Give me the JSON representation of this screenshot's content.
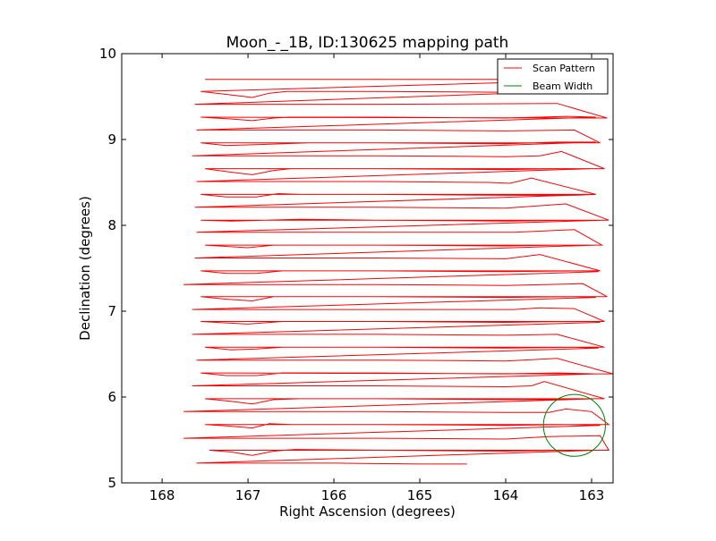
{
  "chart_data": {
    "type": "line",
    "title": "Moon_-_1B, ID:130625 mapping path",
    "xlabel": "Right Ascension (degrees)",
    "ylabel": "Declination (degrees)",
    "xlim": [
      168.47,
      162.75
    ],
    "ylim": [
      5,
      10
    ],
    "x_inverted": true,
    "xticks": [
      168,
      167,
      166,
      165,
      164,
      163
    ],
    "yticks": [
      5,
      6,
      7,
      8,
      9,
      10
    ],
    "xtick_labels": [
      "168",
      "167",
      "166",
      "165",
      "164",
      "163"
    ],
    "ytick_labels": [
      "5",
      "6",
      "7",
      "8",
      "9",
      "10"
    ],
    "grid": false,
    "legend": {
      "placement": "top-right",
      "entries": [
        {
          "label": "Scan Pattern",
          "color": "#ff0000"
        },
        {
          "label": "Beam Width",
          "color": "#008000"
        }
      ]
    },
    "series": [
      {
        "name": "Scan Pattern",
        "color": "#ff0000",
        "points": [
          [
            167.5,
            9.7
          ],
          [
            165.6,
            9.7
          ],
          [
            164.0,
            9.7
          ],
          [
            163.4,
            9.68
          ],
          [
            167.55,
            9.56
          ],
          [
            167.2,
            9.52
          ],
          [
            166.95,
            9.49
          ],
          [
            166.75,
            9.54
          ],
          [
            166.55,
            9.56
          ],
          [
            165.5,
            9.56
          ],
          [
            163.9,
            9.55
          ],
          [
            163.3,
            9.56
          ],
          [
            167.62,
            9.41
          ],
          [
            165.5,
            9.41
          ],
          [
            163.4,
            9.42
          ],
          [
            162.82,
            9.25
          ],
          [
            167.55,
            9.26
          ],
          [
            167.2,
            9.24
          ],
          [
            166.95,
            9.22
          ],
          [
            166.7,
            9.25
          ],
          [
            166.5,
            9.26
          ],
          [
            165.5,
            9.26
          ],
          [
            164.0,
            9.25
          ],
          [
            163.6,
            9.26
          ],
          [
            163.3,
            9.27
          ],
          [
            162.95,
            9.26
          ],
          [
            167.6,
            9.11
          ],
          [
            165.5,
            9.11
          ],
          [
            164.0,
            9.1
          ],
          [
            163.2,
            9.11
          ],
          [
            162.9,
            8.96
          ],
          [
            167.55,
            8.96
          ],
          [
            167.25,
            8.93
          ],
          [
            166.9,
            8.94
          ],
          [
            166.3,
            8.96
          ],
          [
            165.5,
            8.96
          ],
          [
            164.0,
            8.95
          ],
          [
            163.4,
            8.97
          ],
          [
            162.95,
            8.97
          ],
          [
            167.65,
            8.81
          ],
          [
            165.5,
            8.81
          ],
          [
            164.0,
            8.8
          ],
          [
            163.6,
            8.81
          ],
          [
            163.35,
            8.86
          ],
          [
            162.85,
            8.66
          ],
          [
            167.5,
            8.66
          ],
          [
            167.2,
            8.62
          ],
          [
            166.95,
            8.59
          ],
          [
            166.7,
            8.64
          ],
          [
            166.5,
            8.66
          ],
          [
            165.5,
            8.66
          ],
          [
            164.0,
            8.65
          ],
          [
            163.4,
            8.66
          ],
          [
            163.0,
            8.66
          ],
          [
            167.6,
            8.51
          ],
          [
            165.5,
            8.51
          ],
          [
            164.2,
            8.5
          ],
          [
            163.95,
            8.49
          ],
          [
            163.7,
            8.55
          ],
          [
            162.95,
            8.36
          ],
          [
            167.55,
            8.36
          ],
          [
            167.25,
            8.33
          ],
          [
            166.9,
            8.33
          ],
          [
            166.65,
            8.37
          ],
          [
            166.4,
            8.36
          ],
          [
            165.5,
            8.36
          ],
          [
            164.0,
            8.35
          ],
          [
            163.2,
            8.35
          ],
          [
            162.95,
            8.36
          ],
          [
            167.62,
            8.21
          ],
          [
            165.5,
            8.21
          ],
          [
            164.0,
            8.2
          ],
          [
            163.3,
            8.25
          ],
          [
            162.8,
            8.06
          ],
          [
            167.55,
            8.06
          ],
          [
            167.2,
            8.05
          ],
          [
            166.4,
            8.07
          ],
          [
            165.5,
            8.06
          ],
          [
            164.0,
            8.05
          ],
          [
            163.2,
            8.06
          ],
          [
            162.85,
            8.06
          ],
          [
            167.6,
            7.92
          ],
          [
            165.5,
            7.92
          ],
          [
            163.9,
            7.92
          ],
          [
            163.2,
            7.95
          ],
          [
            162.88,
            7.77
          ],
          [
            167.5,
            7.77
          ],
          [
            167.0,
            7.74
          ],
          [
            166.7,
            7.77
          ],
          [
            165.5,
            7.77
          ],
          [
            164.0,
            7.76
          ],
          [
            163.4,
            7.77
          ],
          [
            162.95,
            7.77
          ],
          [
            167.62,
            7.62
          ],
          [
            165.5,
            7.62
          ],
          [
            164.0,
            7.61
          ],
          [
            163.6,
            7.66
          ],
          [
            162.9,
            7.47
          ],
          [
            167.55,
            7.47
          ],
          [
            167.25,
            7.44
          ],
          [
            166.9,
            7.44
          ],
          [
            166.6,
            7.47
          ],
          [
            165.5,
            7.47
          ],
          [
            164.0,
            7.46
          ],
          [
            163.2,
            7.47
          ],
          [
            162.92,
            7.46
          ],
          [
            167.75,
            7.31
          ],
          [
            165.5,
            7.31
          ],
          [
            164.0,
            7.3
          ],
          [
            163.1,
            7.32
          ],
          [
            162.82,
            7.17
          ],
          [
            167.55,
            7.17
          ],
          [
            167.25,
            7.14
          ],
          [
            166.95,
            7.12
          ],
          [
            166.7,
            7.17
          ],
          [
            165.5,
            7.17
          ],
          [
            164.0,
            7.16
          ],
          [
            163.2,
            7.17
          ],
          [
            162.95,
            7.16
          ],
          [
            167.65,
            7.02
          ],
          [
            165.5,
            7.02
          ],
          [
            163.9,
            7.02
          ],
          [
            163.6,
            7.04
          ],
          [
            163.2,
            7.03
          ],
          [
            162.85,
            6.88
          ],
          [
            167.55,
            6.88
          ],
          [
            167.2,
            6.86
          ],
          [
            167.0,
            6.85
          ],
          [
            166.6,
            6.88
          ],
          [
            165.5,
            6.88
          ],
          [
            164.0,
            6.87
          ],
          [
            163.3,
            6.88
          ],
          [
            162.9,
            6.87
          ],
          [
            167.65,
            6.73
          ],
          [
            165.5,
            6.73
          ],
          [
            164.0,
            6.72
          ],
          [
            163.4,
            6.73
          ],
          [
            162.85,
            6.58
          ],
          [
            167.5,
            6.58
          ],
          [
            167.2,
            6.55
          ],
          [
            166.9,
            6.56
          ],
          [
            166.6,
            6.58
          ],
          [
            165.5,
            6.58
          ],
          [
            164.0,
            6.57
          ],
          [
            163.2,
            6.58
          ],
          [
            162.92,
            6.57
          ],
          [
            167.6,
            6.43
          ],
          [
            165.5,
            6.43
          ],
          [
            164.0,
            6.42
          ],
          [
            163.4,
            6.45
          ],
          [
            162.75,
            6.27
          ],
          [
            167.55,
            6.28
          ],
          [
            167.25,
            6.25
          ],
          [
            166.9,
            6.25
          ],
          [
            166.6,
            6.28
          ],
          [
            165.5,
            6.28
          ],
          [
            164.0,
            6.27
          ],
          [
            163.4,
            6.28
          ],
          [
            162.95,
            6.27
          ],
          [
            167.65,
            6.13
          ],
          [
            165.5,
            6.13
          ],
          [
            164.0,
            6.12
          ],
          [
            163.7,
            6.13
          ],
          [
            163.55,
            6.18
          ],
          [
            162.85,
            5.98
          ],
          [
            167.5,
            5.98
          ],
          [
            167.2,
            5.95
          ],
          [
            166.95,
            5.92
          ],
          [
            166.7,
            5.97
          ],
          [
            166.4,
            5.98
          ],
          [
            165.5,
            5.98
          ],
          [
            164.0,
            5.97
          ],
          [
            163.3,
            5.97
          ],
          [
            162.95,
            5.98
          ],
          [
            167.75,
            5.83
          ],
          [
            165.5,
            5.83
          ],
          [
            164.0,
            5.82
          ],
          [
            163.5,
            5.82
          ],
          [
            163.3,
            5.86
          ],
          [
            163.0,
            5.83
          ],
          [
            162.8,
            5.68
          ],
          [
            167.5,
            5.68
          ],
          [
            167.2,
            5.66
          ],
          [
            166.95,
            5.64
          ],
          [
            166.75,
            5.69
          ],
          [
            166.5,
            5.68
          ],
          [
            165.5,
            5.68
          ],
          [
            164.0,
            5.67
          ],
          [
            163.3,
            5.68
          ],
          [
            162.9,
            5.67
          ],
          [
            167.75,
            5.52
          ],
          [
            165.5,
            5.52
          ],
          [
            164.0,
            5.51
          ],
          [
            163.5,
            5.54
          ],
          [
            162.9,
            5.55
          ],
          [
            162.8,
            5.38
          ],
          [
            167.45,
            5.38
          ],
          [
            167.2,
            5.36
          ],
          [
            166.95,
            5.32
          ],
          [
            166.7,
            5.37
          ],
          [
            166.45,
            5.39
          ],
          [
            165.5,
            5.38
          ],
          [
            164.0,
            5.37
          ],
          [
            163.3,
            5.38
          ],
          [
            162.95,
            5.38
          ],
          [
            167.6,
            5.23
          ],
          [
            166.0,
            5.23
          ],
          [
            165.0,
            5.22
          ],
          [
            164.45,
            5.22
          ]
        ]
      },
      {
        "name": "Beam Width",
        "color": "#008000",
        "shape": "circle",
        "center": [
          163.2,
          5.67
        ],
        "radius": 0.36
      }
    ]
  }
}
